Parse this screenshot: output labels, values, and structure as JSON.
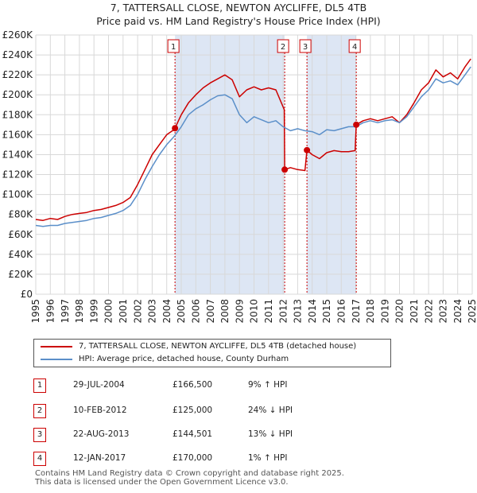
{
  "title_line1": "7, TATTERSALL CLOSE, NEWTON AYCLIFFE, DL5 4TB",
  "title_line2": "Price paid vs. HM Land Registry's House Price Index (HPI)",
  "colors": {
    "property": "#cc0000",
    "hpi": "#5b8fc9",
    "shade": "#dde6f4",
    "grid": "#d8d8d8"
  },
  "legend": {
    "property_label": "7, TATTERSALL CLOSE, NEWTON AYCLIFFE, DL5 4TB (detached house)",
    "hpi_label": "HPI: Average price, detached house, County Durham"
  },
  "sales": [
    {
      "num": "1",
      "date": "29-JUL-2004",
      "price": "£166,500",
      "hpi": "9% ↑ HPI"
    },
    {
      "num": "2",
      "date": "10-FEB-2012",
      "price": "£125,000",
      "hpi": "24% ↓ HPI"
    },
    {
      "num": "3",
      "date": "22-AUG-2013",
      "price": "£144,501",
      "hpi": "13% ↓ HPI"
    },
    {
      "num": "4",
      "date": "12-JAN-2017",
      "price": "£170,000",
      "hpi": "1% ↑ HPI"
    }
  ],
  "footer": {
    "line1": "Contains HM Land Registry data © Crown copyright and database right 2025.",
    "line2": "This data is licensed under the Open Government Licence v3.0."
  },
  "chart_data": {
    "type": "line",
    "title": "7, TATTERSALL CLOSE, NEWTON AYCLIFFE, DL5 4TB — Price paid vs. HM Land Registry's House Price Index (HPI)",
    "xlim": [
      1995,
      2025
    ],
    "ylim": [
      0,
      260000
    ],
    "x_ticks": [
      1995,
      1996,
      1997,
      1998,
      1999,
      2000,
      2001,
      2002,
      2003,
      2004,
      2005,
      2006,
      2007,
      2008,
      2009,
      2010,
      2011,
      2012,
      2013,
      2014,
      2015,
      2016,
      2017,
      2018,
      2019,
      2020,
      2021,
      2022,
      2023,
      2024,
      2025
    ],
    "y_ticks": [
      0,
      20000,
      40000,
      60000,
      80000,
      100000,
      120000,
      140000,
      160000,
      180000,
      200000,
      220000,
      240000,
      260000
    ],
    "y_tick_labels": [
      "£0",
      "£20K",
      "£40K",
      "£60K",
      "£80K",
      "£100K",
      "£120K",
      "£140K",
      "£160K",
      "£180K",
      "£200K",
      "£220K",
      "£240K",
      "£260K"
    ],
    "shaded_periods": [
      [
        2004.57,
        2012.11
      ],
      [
        2013.64,
        2017.03
      ]
    ],
    "sale_points": [
      {
        "label": "1",
        "x": 2004.57,
        "y": 166500
      },
      {
        "label": "2",
        "x": 2012.11,
        "y": 125000
      },
      {
        "label": "3",
        "x": 2013.64,
        "y": 144501
      },
      {
        "label": "4",
        "x": 2017.03,
        "y": 170000
      }
    ],
    "series": [
      {
        "name": "7, TATTERSALL CLOSE, NEWTON AYCLIFFE, DL5 4TB (detached house)",
        "x": [
          1995,
          1995.5,
          1996,
          1996.5,
          1997,
          1997.5,
          1998,
          1998.5,
          1999,
          1999.5,
          2000,
          2000.5,
          2001,
          2001.5,
          2002,
          2002.5,
          2003,
          2003.5,
          2004,
          2004.5,
          2004.57,
          2005,
          2005.5,
          2006,
          2006.5,
          2007,
          2007.5,
          2008,
          2008.5,
          2009,
          2009.5,
          2010,
          2010.5,
          2011,
          2011.5,
          2012.08,
          2012.11,
          2012.5,
          2013,
          2013.5,
          2013.64,
          2014,
          2014.5,
          2015,
          2015.5,
          2016,
          2016.5,
          2016.95,
          2017.03,
          2017.5,
          2018,
          2018.5,
          2019,
          2019.5,
          2020,
          2020.5,
          2021,
          2021.5,
          2022,
          2022.5,
          2023,
          2023.5,
          2024,
          2024.5,
          2024.9
        ],
        "y": [
          75000,
          74000,
          76000,
          75000,
          78000,
          80000,
          81000,
          82000,
          84000,
          85000,
          87000,
          89000,
          92000,
          97000,
          110000,
          125000,
          140000,
          150000,
          160000,
          165000,
          166500,
          180000,
          192000,
          200000,
          207000,
          212000,
          216000,
          220000,
          215000,
          198000,
          205000,
          208000,
          205000,
          207000,
          205000,
          185000,
          125000,
          127000,
          125000,
          124000,
          144501,
          140000,
          136000,
          142000,
          144000,
          143000,
          143000,
          144000,
          170000,
          174000,
          176000,
          174000,
          176000,
          178000,
          172000,
          180000,
          192000,
          205000,
          212000,
          225000,
          218000,
          222000,
          216000,
          228000,
          236000
        ]
      },
      {
        "name": "HPI: Average price, detached house, County Durham",
        "x": [
          1995,
          1995.5,
          1996,
          1996.5,
          1997,
          1997.5,
          1998,
          1998.5,
          1999,
          1999.5,
          2000,
          2000.5,
          2001,
          2001.5,
          2002,
          2002.5,
          2003,
          2003.5,
          2004,
          2004.5,
          2005,
          2005.5,
          2006,
          2006.5,
          2007,
          2007.5,
          2008,
          2008.5,
          2009,
          2009.5,
          2010,
          2010.5,
          2011,
          2011.5,
          2012,
          2012.5,
          2013,
          2013.5,
          2014,
          2014.5,
          2015,
          2015.5,
          2016,
          2016.5,
          2017,
          2017.5,
          2018,
          2018.5,
          2019,
          2019.5,
          2020,
          2020.5,
          2021,
          2021.5,
          2022,
          2022.5,
          2023,
          2023.5,
          2024,
          2024.5,
          2024.9
        ],
        "y": [
          69000,
          68000,
          69000,
          69000,
          71000,
          72000,
          73000,
          74000,
          76000,
          77000,
          79000,
          81000,
          84000,
          89000,
          100000,
          115000,
          128000,
          140000,
          150000,
          158000,
          168000,
          180000,
          186000,
          190000,
          195000,
          199000,
          200000,
          196000,
          180000,
          172000,
          178000,
          175000,
          172000,
          174000,
          168000,
          164000,
          166000,
          164000,
          163000,
          160000,
          165000,
          164000,
          166000,
          168000,
          168000,
          172000,
          174000,
          172000,
          174000,
          175000,
          172000,
          178000,
          188000,
          198000,
          205000,
          216000,
          212000,
          214000,
          210000,
          220000,
          228000
        ]
      }
    ]
  }
}
